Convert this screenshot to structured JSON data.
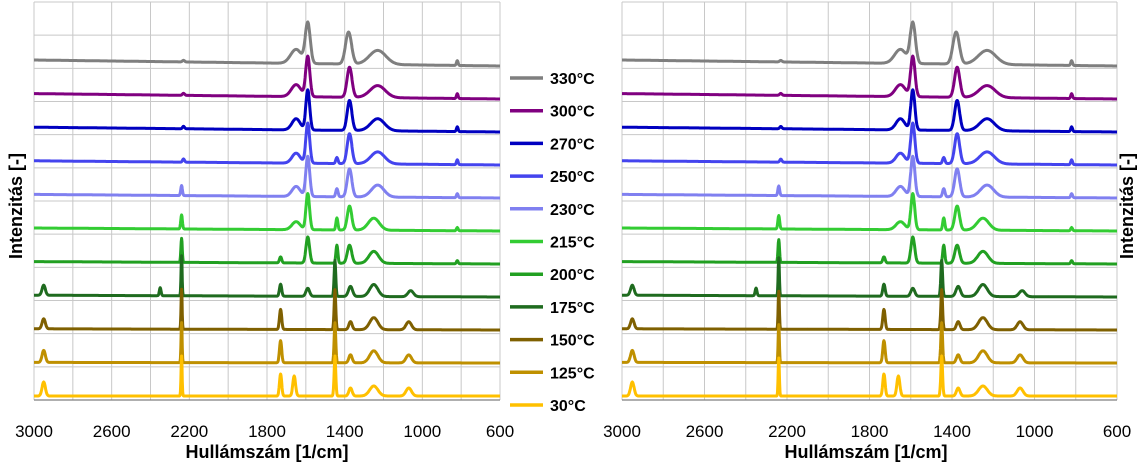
{
  "chart_data": {
    "type": "line",
    "xlabel": "Hullámszám [1/cm]",
    "ylabel": "Intenzitás [-]",
    "xlim": [
      3000,
      600
    ],
    "x_ticks": [
      3000,
      2600,
      2200,
      1800,
      1400,
      1000,
      600
    ],
    "grid": true,
    "legend_position": "center",
    "series": [
      {
        "name": "330°C",
        "color": "#7f7f7f",
        "peaks": [
          [
            2230,
            0.04,
            8
          ],
          [
            1650,
            0.35,
            40
          ],
          [
            1590,
            1.0,
            18
          ],
          [
            1380,
            0.8,
            22
          ],
          [
            1230,
            0.35,
            60
          ],
          [
            820,
            0.12,
            6
          ]
        ]
      },
      {
        "name": "300°C",
        "color": "#800080",
        "peaks": [
          [
            2230,
            0.05,
            8
          ],
          [
            1650,
            0.3,
            35
          ],
          [
            1590,
            1.0,
            15
          ],
          [
            1375,
            0.75,
            18
          ],
          [
            1230,
            0.3,
            55
          ],
          [
            820,
            0.12,
            6
          ]
        ]
      },
      {
        "name": "270°C",
        "color": "#0000c0",
        "peaks": [
          [
            2230,
            0.06,
            7
          ],
          [
            1650,
            0.28,
            30
          ],
          [
            1590,
            1.0,
            14
          ],
          [
            1375,
            0.75,
            17
          ],
          [
            1230,
            0.3,
            50
          ],
          [
            820,
            0.12,
            6
          ]
        ]
      },
      {
        "name": "250°C",
        "color": "#4444ee",
        "peaks": [
          [
            2230,
            0.08,
            7
          ],
          [
            1650,
            0.25,
            30
          ],
          [
            1590,
            1.0,
            14
          ],
          [
            1440,
            0.15,
            8
          ],
          [
            1375,
            0.75,
            17
          ],
          [
            1230,
            0.3,
            50
          ],
          [
            820,
            0.12,
            6
          ]
        ]
      },
      {
        "name": "230°C",
        "color": "#8080f0",
        "peaks": [
          [
            2240,
            0.25,
            6
          ],
          [
            1650,
            0.25,
            30
          ],
          [
            1590,
            1.0,
            14
          ],
          [
            1440,
            0.2,
            8
          ],
          [
            1375,
            0.7,
            17
          ],
          [
            1230,
            0.3,
            45
          ],
          [
            820,
            0.1,
            6
          ]
        ]
      },
      {
        "name": "215°C",
        "color": "#33cc33",
        "peaks": [
          [
            2240,
            0.35,
            6
          ],
          [
            1650,
            0.2,
            30
          ],
          [
            1590,
            0.9,
            13
          ],
          [
            1440,
            0.3,
            7
          ],
          [
            1375,
            0.6,
            16
          ],
          [
            1250,
            0.3,
            40
          ],
          [
            820,
            0.08,
            6
          ]
        ]
      },
      {
        "name": "200°C",
        "color": "#22a022",
        "peaks": [
          [
            2240,
            0.6,
            5
          ],
          [
            1730,
            0.15,
            8
          ],
          [
            1590,
            0.65,
            13
          ],
          [
            1440,
            0.45,
            7
          ],
          [
            1375,
            0.45,
            16
          ],
          [
            1250,
            0.3,
            35
          ],
          [
            820,
            0.08,
            6
          ]
        ]
      },
      {
        "name": "175°C",
        "color": "#1f6b1f",
        "peaks": [
          [
            2950,
            0.25,
            12
          ],
          [
            2350,
            0.2,
            6
          ],
          [
            2240,
            1.0,
            4
          ],
          [
            1730,
            0.3,
            8
          ],
          [
            1590,
            0.2,
            13
          ],
          [
            1450,
            0.9,
            6
          ],
          [
            1370,
            0.25,
            15
          ],
          [
            1250,
            0.3,
            30
          ],
          [
            1060,
            0.15,
            20
          ]
        ]
      },
      {
        "name": "150°C",
        "color": "#7f6000",
        "peaks": [
          [
            2950,
            0.25,
            12
          ],
          [
            2240,
            1.0,
            4
          ],
          [
            1730,
            0.5,
            8
          ],
          [
            1450,
            1.0,
            6
          ],
          [
            1370,
            0.2,
            12
          ],
          [
            1250,
            0.3,
            30
          ],
          [
            1070,
            0.2,
            20
          ]
        ]
      },
      {
        "name": "125°C",
        "color": "#bf9000",
        "peaks": [
          [
            2950,
            0.3,
            12
          ],
          [
            2240,
            1.0,
            4
          ],
          [
            1730,
            0.55,
            8
          ],
          [
            1450,
            1.0,
            6
          ],
          [
            1370,
            0.2,
            12
          ],
          [
            1250,
            0.3,
            30
          ],
          [
            1070,
            0.2,
            20
          ]
        ]
      },
      {
        "name": "30°C",
        "color": "#ffc000",
        "peaks": [
          [
            2950,
            0.35,
            12
          ],
          [
            2240,
            1.0,
            4
          ],
          [
            1730,
            0.55,
            8
          ],
          [
            1660,
            0.5,
            10
          ],
          [
            1450,
            1.0,
            6
          ],
          [
            1370,
            0.2,
            12
          ],
          [
            1250,
            0.25,
            30
          ],
          [
            1070,
            0.2,
            20
          ]
        ]
      }
    ]
  }
}
